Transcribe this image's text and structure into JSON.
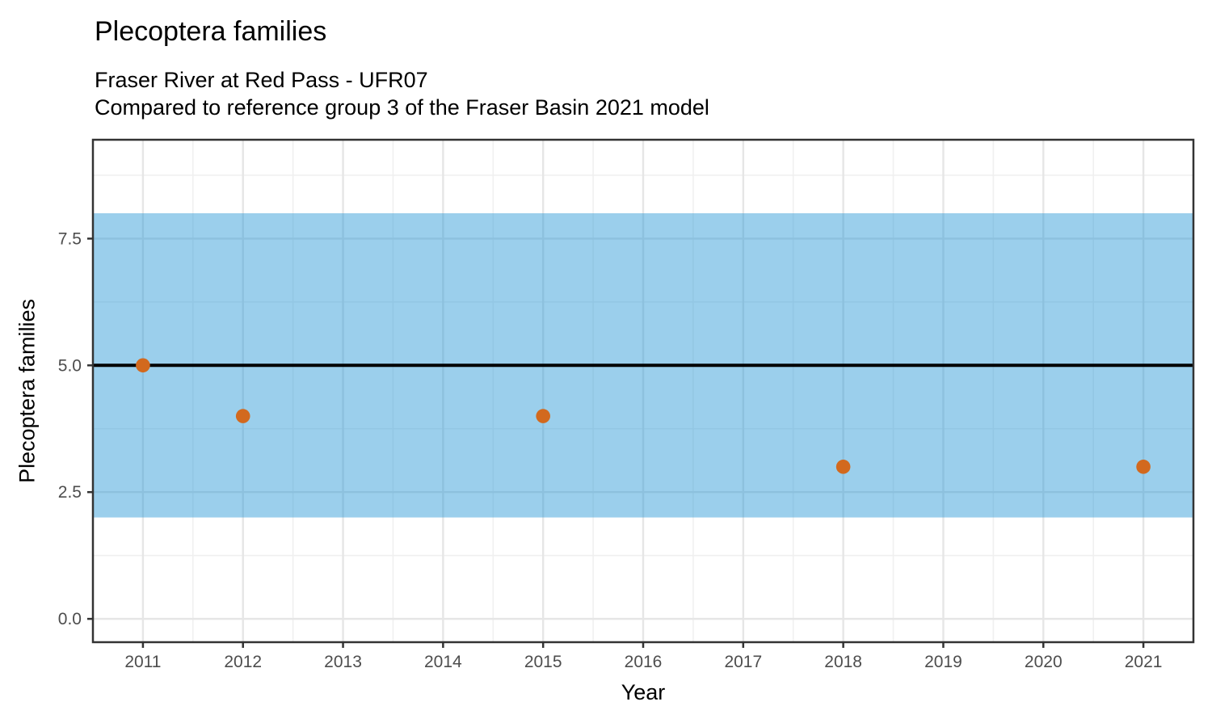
{
  "header": {
    "title": "Plecoptera families",
    "subtitle_line1": "Fraser River at Red Pass - UFR07",
    "subtitle_line2": "Compared to reference group 3 of the Fraser Basin 2021 model"
  },
  "chart_data": {
    "type": "scatter",
    "title": "Plecoptera families",
    "subtitle": [
      "Fraser River at Red Pass - UFR07",
      "Compared to reference group 3 of the Fraser Basin 2021 model"
    ],
    "xlabel": "Year",
    "ylabel": "Plecoptera families",
    "points": [
      {
        "x": 2011,
        "y": 5
      },
      {
        "x": 2012,
        "y": 4
      },
      {
        "x": 2015,
        "y": 4
      },
      {
        "x": 2018,
        "y": 3
      },
      {
        "x": 2021,
        "y": 3
      }
    ],
    "reference_line_y": 5,
    "reference_band": {
      "ymin": 2,
      "ymax": 8
    },
    "xlim": [
      2010.5,
      2021.5
    ],
    "ylim": [
      -0.46,
      9.45
    ],
    "x_ticks": [
      2011,
      2012,
      2013,
      2014,
      2015,
      2016,
      2017,
      2018,
      2019,
      2020,
      2021
    ],
    "y_ticks": [
      0.0,
      2.5,
      5.0,
      7.5
    ],
    "y_tick_labels": [
      "0.0",
      "2.5",
      "5.0",
      "7.5"
    ],
    "x_minor_gridlines": [
      2011.5,
      2012.5,
      2013.5,
      2014.5,
      2015.5,
      2016.5,
      2017.5,
      2018.5,
      2019.5,
      2020.5
    ],
    "y_minor_gridlines": [
      1.25,
      3.75,
      6.25,
      8.75
    ],
    "grid": true,
    "legend": "none",
    "colors": {
      "band_fill": "#2195D5",
      "band_opacity": "0.45",
      "point": "#D2691E",
      "reference_line": "#000000",
      "grid_major": "#E6E6E6",
      "grid_minor": "#F0F0F0",
      "panel_border": "#333333",
      "tick_mark": "#333333",
      "tick_text": "#4D4D4D"
    }
  }
}
